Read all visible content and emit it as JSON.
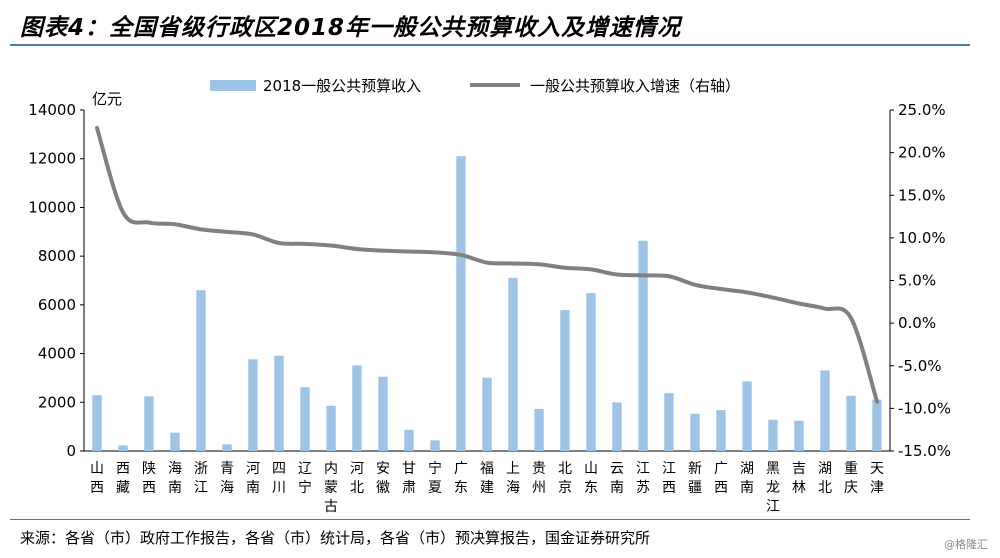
{
  "title": "图表4：全国省级行政区2018年一般公共预算收入及增速情况",
  "source": "来源：各省（市）政府工作报告，各省（市）统计局，各省（市）预决算报告，国金证券研究所",
  "watermark": "@格隆汇",
  "chart_data": {
    "type": "bar",
    "ylabel_left": "亿元",
    "ylim_left": [
      0,
      14000
    ],
    "yticks_left": [
      "0",
      "2000",
      "4000",
      "6000",
      "8000",
      "10000",
      "12000",
      "14000"
    ],
    "ylim_right": [
      -15,
      25
    ],
    "yticks_right": [
      "-15.0%",
      "-10.0%",
      "-5.0%",
      "0.0%",
      "5.0%",
      "10.0%",
      "15.0%",
      "20.0%",
      "25.0%"
    ],
    "legend_position": "top",
    "categories": [
      "山西",
      "西藏",
      "陕西",
      "海南",
      "浙江",
      "青海",
      "河南",
      "四川",
      "辽宁",
      "内蒙古",
      "河北",
      "安徽",
      "甘肃",
      "宁夏",
      "广东",
      "福建",
      "上海",
      "贵州",
      "北京",
      "山东",
      "云南",
      "江苏",
      "江西",
      "新疆",
      "广西",
      "湖南",
      "黑龙江",
      "吉林",
      "湖北",
      "重庆",
      "天津"
    ],
    "series": [
      {
        "name": "2018一般公共预算收入",
        "type": "bar",
        "axis": "left",
        "color": "#9dc3e6",
        "values": [
          2292,
          230,
          2243,
          752,
          6598,
          272,
          3766,
          3911,
          2616,
          1857,
          3514,
          3049,
          871,
          436,
          12105,
          3007,
          7108,
          1727,
          5786,
          6485,
          1995,
          8630,
          2373,
          1531,
          1681,
          2860,
          1283,
          1241,
          3307,
          2266,
          2106
        ]
      },
      {
        "name": "一般公共预算收入增速（右轴）",
        "type": "line",
        "axis": "right",
        "color": "#808080",
        "values": [
          22.9,
          13.0,
          11.8,
          11.6,
          11.0,
          10.7,
          10.4,
          9.4,
          9.3,
          9.1,
          8.7,
          8.5,
          8.4,
          8.3,
          8.0,
          7.1,
          7.0,
          6.9,
          6.5,
          6.3,
          5.7,
          5.6,
          5.5,
          4.5,
          4.0,
          3.6,
          3.0,
          2.3,
          1.7,
          0.6,
          -9.2
        ]
      }
    ]
  }
}
